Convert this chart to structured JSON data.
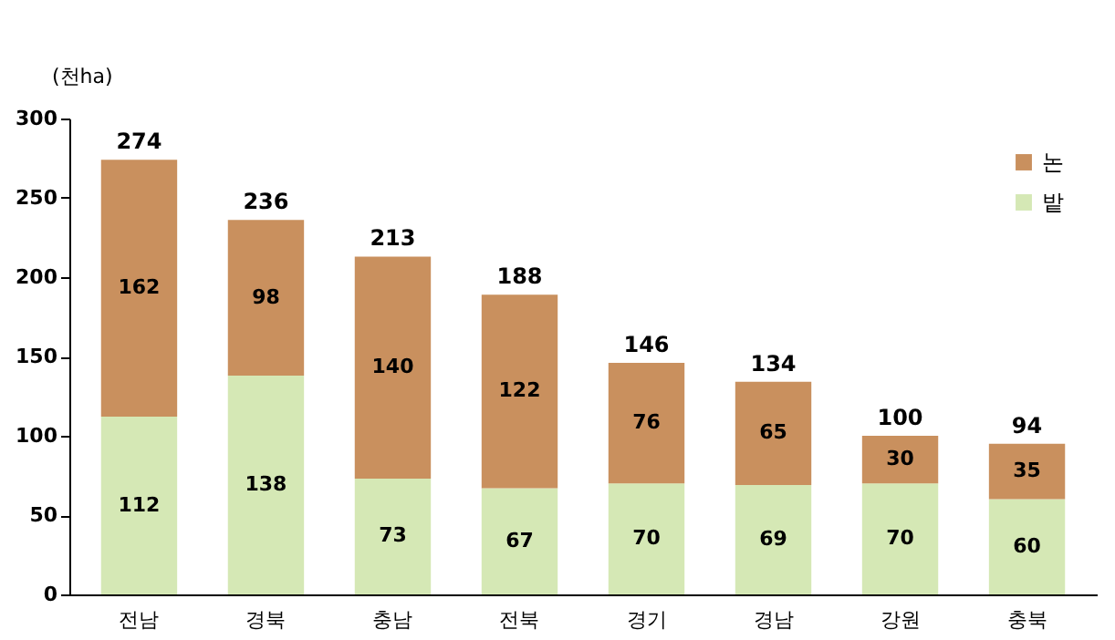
{
  "chart_data": {
    "type": "bar",
    "ylabel": "(천ha)",
    "categories": [
      "전남",
      "경북",
      "충남",
      "전북",
      "경기",
      "경남",
      "강원",
      "충북"
    ],
    "series": [
      {
        "name": "밭",
        "color": "#d5e8b5",
        "values": [
          112,
          138,
          73,
          67,
          70,
          69,
          70,
          60
        ]
      },
      {
        "name": "논",
        "color": "#c9905e",
        "values": [
          162,
          98,
          140,
          122,
          76,
          65,
          30,
          35
        ]
      }
    ],
    "stacked": true,
    "data_labels": true,
    "totals": [
      "274",
      "236",
      "213",
      "188",
      "146",
      "134",
      "100",
      "94"
    ],
    "ylim": [
      0,
      300
    ],
    "yticks": [
      0,
      50,
      100,
      150,
      200,
      250,
      300
    ],
    "grid": false,
    "legend": "top right"
  }
}
